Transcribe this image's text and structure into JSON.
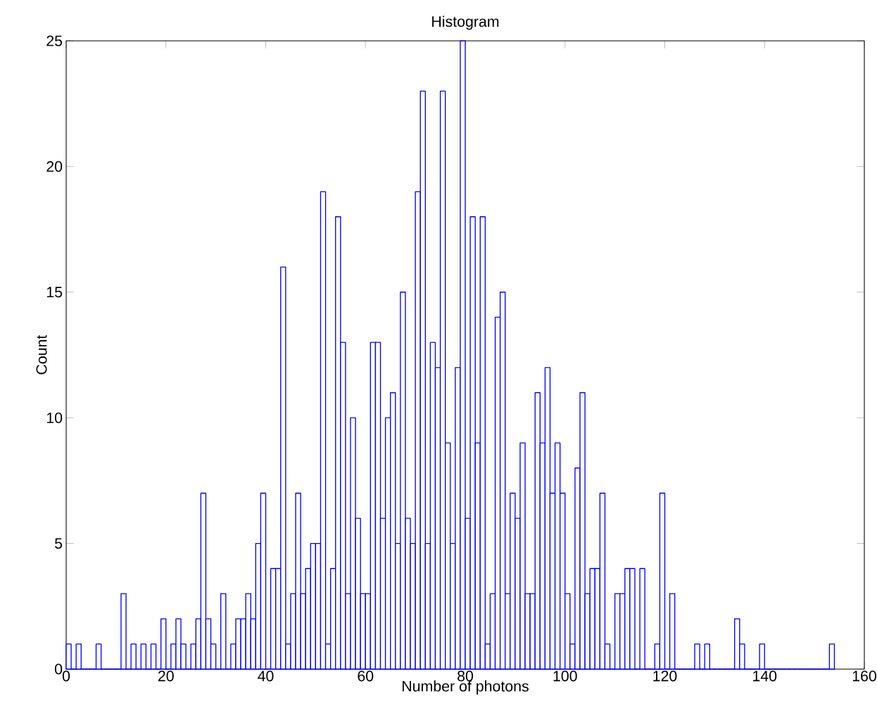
{
  "chart_data": {
    "type": "histogram",
    "title": "Histogram",
    "xlabel": "Number of photons",
    "ylabel": "Count",
    "color": "#0000ff",
    "bins": [
      0,
      1,
      2,
      3,
      4,
      5,
      6,
      7,
      8,
      9,
      10,
      11,
      12,
      13,
      14,
      15,
      16,
      17,
      18,
      19,
      20,
      21,
      22,
      23,
      24,
      25,
      26,
      27,
      28,
      29,
      30,
      31,
      32,
      33,
      34,
      35,
      36,
      37,
      38,
      39,
      40,
      41,
      42,
      43,
      44,
      45,
      46,
      47,
      48,
      49,
      50,
      51,
      52,
      53,
      54,
      55,
      56,
      57,
      58,
      59,
      60,
      61,
      62,
      63,
      64,
      65,
      66,
      67,
      68,
      69,
      70,
      71,
      72,
      73,
      74,
      75,
      76,
      77,
      78,
      79,
      80,
      81,
      82,
      83,
      84,
      85,
      86,
      87,
      88,
      89,
      90,
      91,
      92,
      93,
      94,
      95,
      96,
      97,
      98,
      99,
      100,
      101,
      102,
      103,
      104,
      105,
      106,
      107,
      108,
      109,
      110,
      111,
      112,
      113,
      114,
      115,
      116,
      117,
      118,
      119,
      120,
      121,
      122,
      123,
      124,
      125,
      126,
      127,
      128,
      129,
      130,
      131,
      132,
      133,
      134,
      135,
      136,
      137,
      138,
      139,
      140,
      141,
      142,
      143,
      144,
      145,
      146,
      147,
      148,
      149,
      150,
      151,
      152,
      153,
      154
    ],
    "values": [
      1,
      0,
      1,
      0,
      0,
      0,
      1,
      0,
      0,
      0,
      0,
      3,
      0,
      1,
      0,
      1,
      0,
      1,
      0,
      2,
      0,
      1,
      2,
      1,
      0,
      1,
      2,
      7,
      2,
      1,
      0,
      3,
      0,
      1,
      2,
      2,
      3,
      2,
      5,
      7,
      0,
      4,
      4,
      16,
      1,
      3,
      7,
      3,
      4,
      5,
      5,
      19,
      1,
      4,
      18,
      13,
      3,
      10,
      6,
      3,
      3,
      13,
      13,
      6,
      10,
      11,
      5,
      15,
      6,
      5,
      19,
      23,
      5,
      13,
      12,
      23,
      9,
      5,
      12,
      25,
      6,
      18,
      9,
      18,
      1,
      3,
      14,
      15,
      3,
      7,
      6,
      9,
      3,
      3,
      11,
      9,
      12,
      7,
      9,
      7,
      3,
      1,
      8,
      11,
      3,
      4,
      4,
      7,
      1,
      0,
      3,
      3,
      4,
      4,
      0,
      4,
      0,
      0,
      1,
      7,
      0,
      3,
      0,
      0,
      0,
      0,
      1,
      0,
      1,
      0,
      0,
      0,
      0,
      0,
      2,
      1,
      0,
      0,
      0,
      1,
      0,
      0,
      0,
      0,
      0,
      0,
      0,
      0,
      0,
      0,
      0,
      0,
      0,
      1
    ],
    "xlim": [
      0,
      160
    ],
    "ylim": [
      0,
      25
    ],
    "xticks": [
      0,
      20,
      40,
      60,
      80,
      100,
      120,
      140,
      160
    ],
    "yticks": [
      0,
      5,
      10,
      15,
      20,
      25
    ],
    "grid": false
  }
}
